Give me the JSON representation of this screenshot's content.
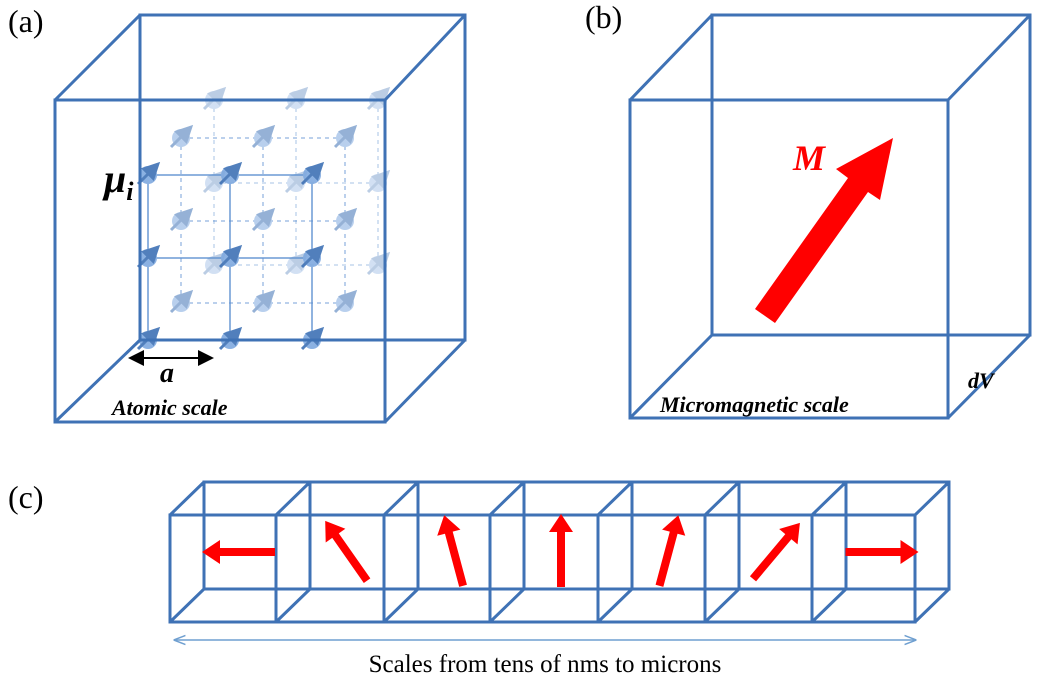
{
  "panels": [
    {
      "label": "(a)",
      "symbol": "μ",
      "subscript": "i",
      "spacing": "a",
      "caption": "Atomic scale"
    },
    {
      "label": "(b)",
      "symbol": "M",
      "volume": "dV",
      "caption": "Micromagnetic scale"
    },
    {
      "label": "(c)",
      "caption": "Scales from tens of nms to microns"
    }
  ]
}
